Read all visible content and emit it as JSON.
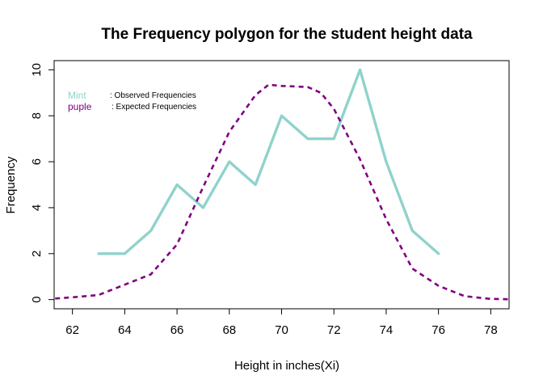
{
  "chart_data": {
    "type": "line",
    "title": "The Frequency polygon for the student height data",
    "xlabel": "Height in inches(Xi)",
    "ylabel": "Frequency",
    "xlim": [
      61.3,
      78.7
    ],
    "ylim": [
      -0.4,
      10.4
    ],
    "x_ticks": [
      62,
      64,
      66,
      68,
      70,
      72,
      74,
      76,
      78
    ],
    "y_ticks": [
      0,
      2,
      4,
      6,
      8,
      10
    ],
    "grid": false,
    "legend_position": "top-left",
    "series": [
      {
        "key": "Mint",
        "name": ": Observed Frequencies",
        "color": "#8FD3CB",
        "style": "solid",
        "x": [
          63,
          64,
          65,
          66,
          67,
          68,
          69,
          70,
          71,
          72,
          73,
          74,
          75,
          76
        ],
        "y": [
          2,
          2,
          3,
          5,
          4,
          6,
          5,
          8,
          7,
          7,
          10,
          6,
          3,
          2
        ]
      },
      {
        "key": "puple",
        "name": ": Expected Frequencies",
        "color": "#800080",
        "style": "dashed",
        "x": [
          61,
          62,
          63,
          64,
          65,
          66,
          67,
          68,
          69,
          69.5,
          70,
          71,
          71.5,
          72,
          73,
          74,
          75,
          76,
          77,
          78,
          79
        ],
        "y": [
          0.02,
          0.1,
          0.2,
          0.65,
          1.1,
          2.4,
          4.9,
          7.3,
          8.9,
          9.35,
          9.3,
          9.25,
          9.0,
          8.3,
          6.1,
          3.5,
          1.35,
          0.6,
          0.15,
          0.03,
          0.01
        ]
      }
    ]
  }
}
